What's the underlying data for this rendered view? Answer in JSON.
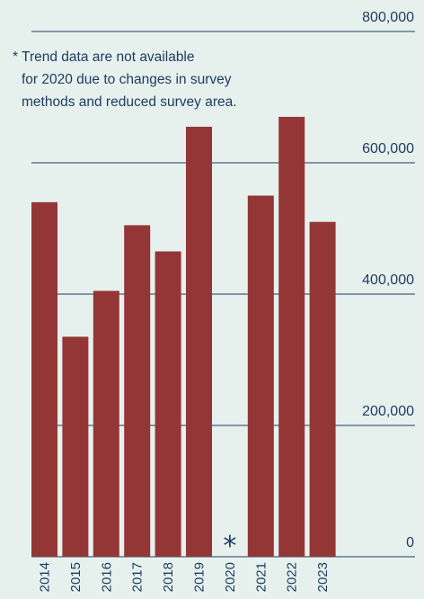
{
  "chart_data": {
    "type": "bar",
    "categories": [
      "2014",
      "2015",
      "2016",
      "2017",
      "2018",
      "2019",
      "2020",
      "2021",
      "2022",
      "2023"
    ],
    "values": [
      540000,
      335000,
      405000,
      505000,
      465000,
      655000,
      null,
      550000,
      670000,
      510000
    ],
    "ylim": [
      0,
      800000
    ],
    "yticks": [
      "0",
      "200,000",
      "400,000",
      "600,000",
      "800,000"
    ],
    "grid": true,
    "missing_marker": "*",
    "annotation": [
      "* Trend data are not available",
      "for 2020 due to changes in survey",
      "methods and reduced survey area."
    ],
    "colors": {
      "bar": "#943636",
      "text": "#1f3a5f",
      "grid": "#1f3a5f",
      "background": "#e6f1ee"
    }
  }
}
